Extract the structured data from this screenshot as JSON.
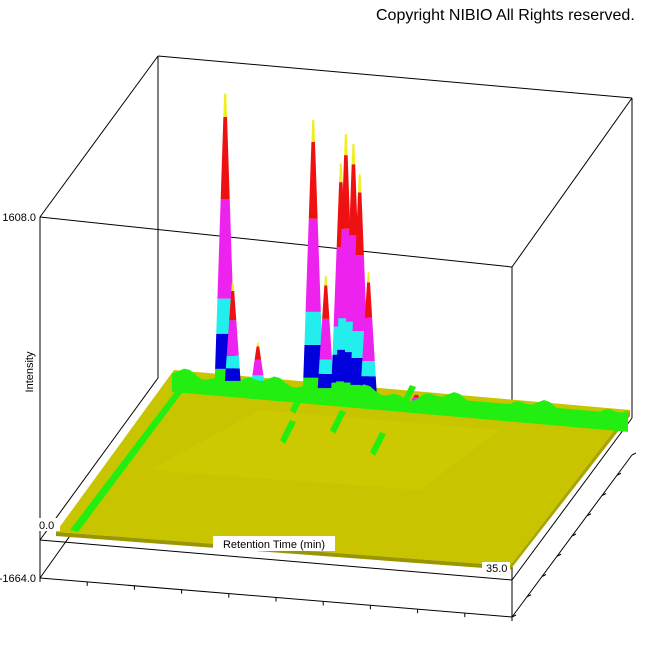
{
  "copyright": "Copyright NIBIO All Rights reserved.",
  "chart_data": {
    "type": "area",
    "view": "3d-surface",
    "xlabel": "Retention Time (min)",
    "ylabel": "Intensity",
    "x_tick_labels": [
      "0.0",
      "35.0"
    ],
    "y_tick_labels": [
      "1608.0",
      "-1664.0"
    ],
    "xlim": [
      0,
      35
    ],
    "ylim": [
      -1664,
      1608
    ],
    "grid": false,
    "colors": {
      "surface_base": "#c8c400",
      "surface_light": "#d8d400",
      "level_green": "#22ee11",
      "level_blue": "#0000dd",
      "level_cyan": "#22eeee",
      "level_magenta": "#ee22ee",
      "level_red": "#ee1111",
      "level_yellow": "#eeee22",
      "frame": "#000000"
    },
    "peaks": [
      {
        "rt": 2.8,
        "height": 1570
      },
      {
        "rt": 3.4,
        "height": 560
      },
      {
        "rt": 5.4,
        "height": 250
      },
      {
        "rt": 9.8,
        "height": 1470
      },
      {
        "rt": 10.8,
        "height": 640
      },
      {
        "rt": 12.0,
        "height": 1250
      },
      {
        "rt": 12.4,
        "height": 1410
      },
      {
        "rt": 13.0,
        "height": 1360
      },
      {
        "rt": 13.5,
        "height": 1200
      },
      {
        "rt": 14.2,
        "height": 680
      },
      {
        "rt": 18.0,
        "height": 50
      }
    ]
  }
}
